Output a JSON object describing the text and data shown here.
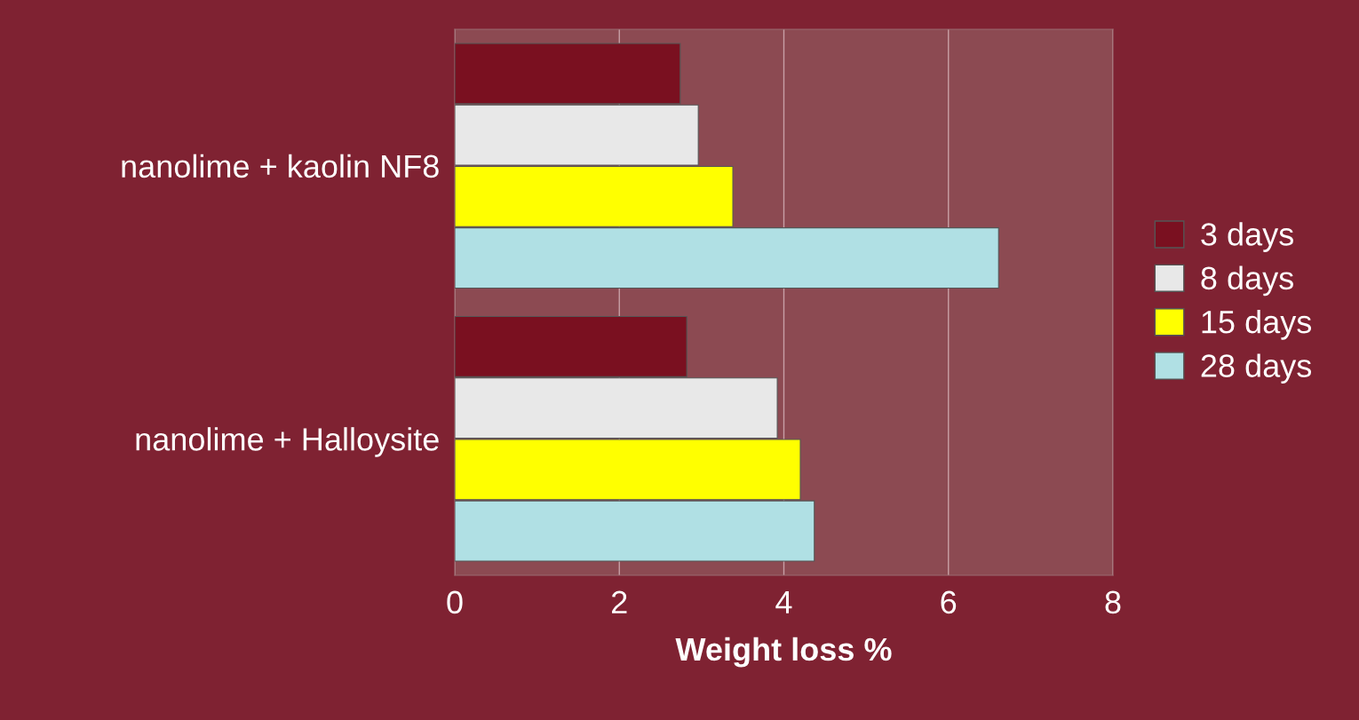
{
  "chart_data": {
    "type": "bar",
    "orientation": "horizontal",
    "xlabel": "Weight loss %",
    "categories": [
      "nanolime + kaolin NF8",
      "nanolime + Halloysite"
    ],
    "series": [
      {
        "name": "3 days",
        "color": "#7a1020",
        "values": [
          2.74,
          2.82
        ]
      },
      {
        "name": "8 days",
        "color": "#e8e8e8",
        "values": [
          2.96,
          3.92
        ]
      },
      {
        "name": "15 days",
        "color": "#ffff00",
        "values": [
          3.38,
          4.2
        ]
      },
      {
        "name": "28 days",
        "color": "#b0e0e4",
        "values": [
          6.61,
          4.37
        ]
      }
    ],
    "xlim": [
      0,
      8
    ],
    "xticks": [
      0,
      2,
      4,
      6,
      8
    ],
    "grid": "x",
    "legend": "right"
  }
}
